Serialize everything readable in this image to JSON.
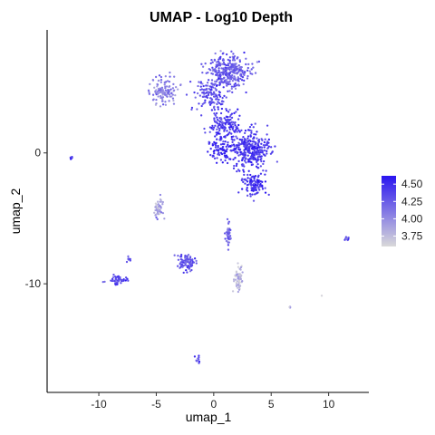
{
  "chart_data": {
    "type": "scatter",
    "title": "UMAP - Log10 Depth",
    "xlabel": "umap_1",
    "ylabel": "umap_2",
    "xlim": [
      -14.5,
      13.5
    ],
    "ylim": [
      -18.3,
      9.4
    ],
    "x_ticks": [
      -10,
      -5,
      0,
      5,
      10
    ],
    "y_ticks": [
      0,
      -10
    ],
    "grid": false,
    "legend_placement": "right",
    "color_scale": {
      "low_color": "#d9d9d9",
      "high_color": "#2a15f0",
      "min": 3.6,
      "max": 4.62,
      "breaks": [
        4.5,
        4.25,
        4.0,
        3.75
      ]
    },
    "clusters": [
      {
        "center": [
          1.2,
          6.2
        ],
        "spread": [
          1.7,
          1.1
        ],
        "count": 320,
        "value": 4.25
      },
      {
        "center": [
          -0.3,
          4.4
        ],
        "spread": [
          1.3,
          1.0
        ],
        "count": 120,
        "value": 4.32
      },
      {
        "center": [
          -4.3,
          4.7
        ],
        "spread": [
          1.0,
          0.9
        ],
        "count": 120,
        "value": 4.05
      },
      {
        "center": [
          1.0,
          2.2
        ],
        "spread": [
          1.3,
          1.0
        ],
        "count": 140,
        "value": 4.42
      },
      {
        "center": [
          3.2,
          0.2
        ],
        "spread": [
          1.6,
          1.3
        ],
        "count": 300,
        "value": 4.45
      },
      {
        "center": [
          0.7,
          0.3
        ],
        "spread": [
          1.0,
          0.9
        ],
        "count": 90,
        "value": 4.5
      },
      {
        "center": [
          3.5,
          -2.4
        ],
        "spread": [
          1.0,
          0.8
        ],
        "count": 110,
        "value": 4.48
      },
      {
        "center": [
          -12.4,
          -0.4
        ],
        "spread": [
          0.12,
          0.1
        ],
        "count": 10,
        "value": 4.45
      },
      {
        "center": [
          -4.8,
          -4.2
        ],
        "spread": [
          0.35,
          0.75
        ],
        "count": 55,
        "value": 3.9
      },
      {
        "center": [
          -2.3,
          -8.4
        ],
        "spread": [
          0.75,
          0.6
        ],
        "count": 95,
        "value": 4.3
      },
      {
        "center": [
          -8.3,
          -9.7
        ],
        "spread": [
          0.7,
          0.3
        ],
        "count": 45,
        "value": 4.35
      },
      {
        "center": [
          -7.4,
          -8.2
        ],
        "spread": [
          0.15,
          0.3
        ],
        "count": 10,
        "value": 4.3
      },
      {
        "center": [
          1.3,
          -6.3
        ],
        "spread": [
          0.2,
          0.9
        ],
        "count": 45,
        "value": 4.2
      },
      {
        "center": [
          2.2,
          -9.6
        ],
        "spread": [
          0.35,
          0.9
        ],
        "count": 60,
        "value": 3.78
      },
      {
        "center": [
          11.6,
          -6.6
        ],
        "spread": [
          0.15,
          0.15
        ],
        "count": 12,
        "value": 4.25
      },
      {
        "center": [
          6.6,
          -11.8
        ],
        "spread": [
          0.06,
          0.06
        ],
        "count": 4,
        "value": 4.0
      },
      {
        "center": [
          9.4,
          -10.9
        ],
        "spread": [
          0.02,
          0.02
        ],
        "count": 1,
        "value": 3.8
      },
      {
        "center": [
          -1.4,
          -15.8
        ],
        "spread": [
          0.15,
          0.3
        ],
        "count": 12,
        "value": 4.3
      }
    ]
  }
}
